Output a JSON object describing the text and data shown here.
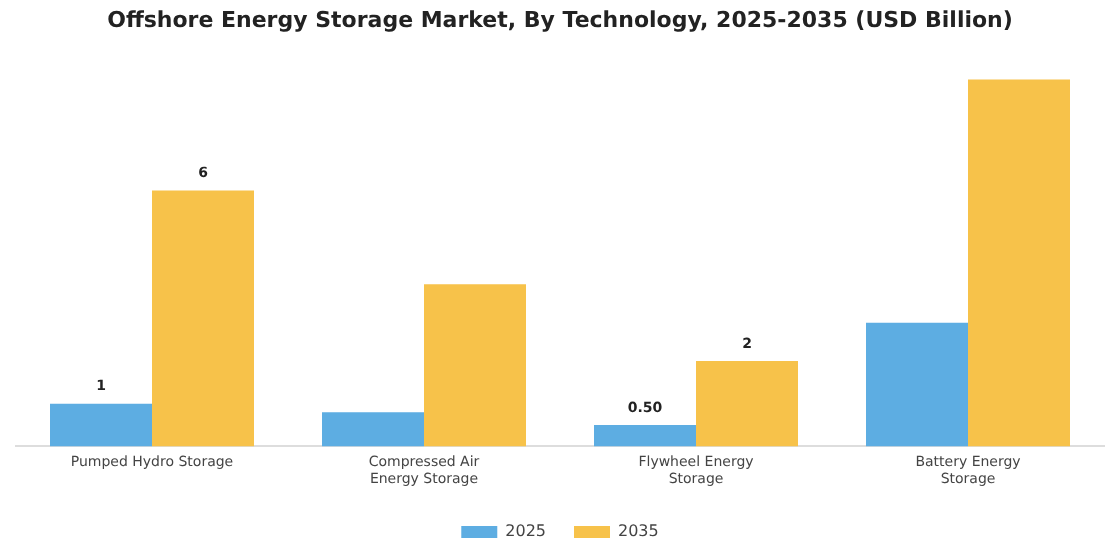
{
  "chart_data": {
    "type": "bar",
    "title": "Offshore Energy Storage Market, By Technology, 2025-2035 (USD Billion)",
    "categories": [
      "Pumped Hydro Storage",
      "Compressed Air Energy Storage",
      "Flywheel Energy Storage",
      "Battery Energy Storage"
    ],
    "series": [
      {
        "name": "2025",
        "color": "#5dade2",
        "values": [
          1,
          0.8,
          0.5,
          2.9
        ],
        "value_labels": [
          "1",
          null,
          "0.50",
          null
        ]
      },
      {
        "name": "2035",
        "color": "#f7c24a",
        "values": [
          6,
          3.8,
          2,
          8.6
        ],
        "value_labels": [
          "6",
          null,
          "2",
          null
        ]
      }
    ],
    "tick_labels": "x",
    "grid": false,
    "legend": "bottom"
  }
}
